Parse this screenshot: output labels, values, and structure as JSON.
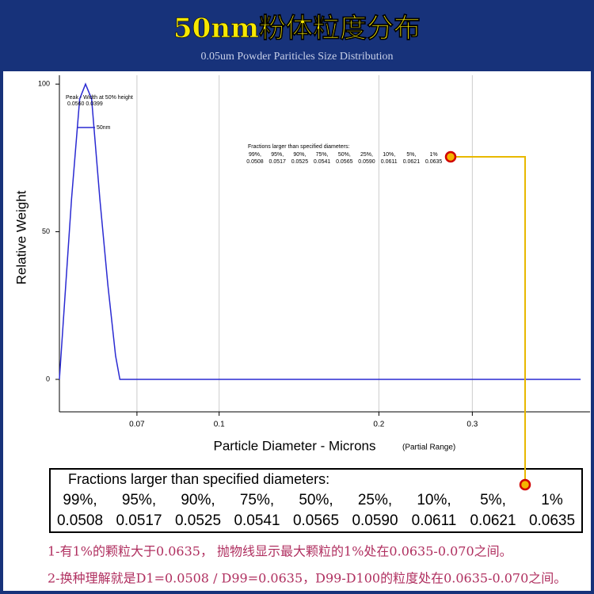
{
  "chart_data": {
    "type": "line",
    "title": "50nm粉体粒度分布",
    "subtitle": "0.05um Powder Pariticles Size Distribution",
    "ylabel": "Relative Weight",
    "xlabel": "Particle Diameter  -  Microns",
    "xlabel_note": "(Partial Range)",
    "xscale": "log",
    "xlim": [
      0.05,
      0.5
    ],
    "ylim": [
      -11,
      103
    ],
    "xticks": [
      0.07,
      0.1,
      0.2,
      0.3
    ],
    "yticks": [
      0,
      50,
      100
    ],
    "grid": true,
    "series": [
      {
        "name": "50nm",
        "color": "#2a2ad2",
        "x": [
          0.05,
          0.0527,
          0.0546,
          0.056,
          0.0575,
          0.0596,
          0.0617,
          0.0638,
          0.065,
          0.48
        ],
        "values": [
          0,
          61,
          95,
          100,
          95,
          61,
          32,
          8,
          0,
          0
        ]
      }
    ],
    "peak_label": "Peak  -  Width at 50% height",
    "peak_values": "0.0560    0.0399",
    "fractions": {
      "title": "Fractions larger than specified diameters:",
      "percents": [
        "99%,",
        "95%,",
        "90%,",
        "75%,",
        "50%,",
        "25%,",
        "10%,",
        "5%,",
        "1%"
      ],
      "diameters": [
        "0.0508",
        "0.0517",
        "0.0525",
        "0.0541",
        "0.0565",
        "0.0590",
        "0.0611",
        "0.0621",
        "0.0635"
      ]
    }
  },
  "notes": [
    "1-有1%的颗粒大于0.0635， 抛物线显示最大颗粒的1%处在0.0635-0.070之间。",
    "2-换种理解就是D1=0.0508 / D99=0.0635，D99-D100的粒度处在0.0635-0.070之间。"
  ]
}
